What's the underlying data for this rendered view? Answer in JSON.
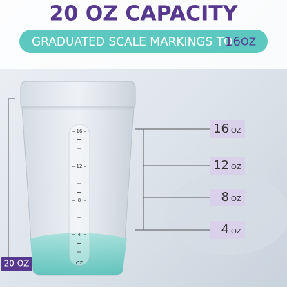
{
  "header": {
    "title": "20 OZ CAPACITY",
    "subtitle": "GRADUATED SCALE MARKINGS TO",
    "subtitle_highlight": {
      "number": "16",
      "unit": "OZ"
    }
  },
  "labels": [
    {
      "number": "16",
      "unit": "OZ"
    },
    {
      "number": "12",
      "unit": "OZ"
    },
    {
      "number": "8",
      "unit": "OZ"
    },
    {
      "number": "4",
      "unit": "OZ"
    }
  ],
  "cup_scale": [
    "16",
    "12",
    "8",
    "4",
    "OZ"
  ],
  "total_label": "20 OZ"
}
